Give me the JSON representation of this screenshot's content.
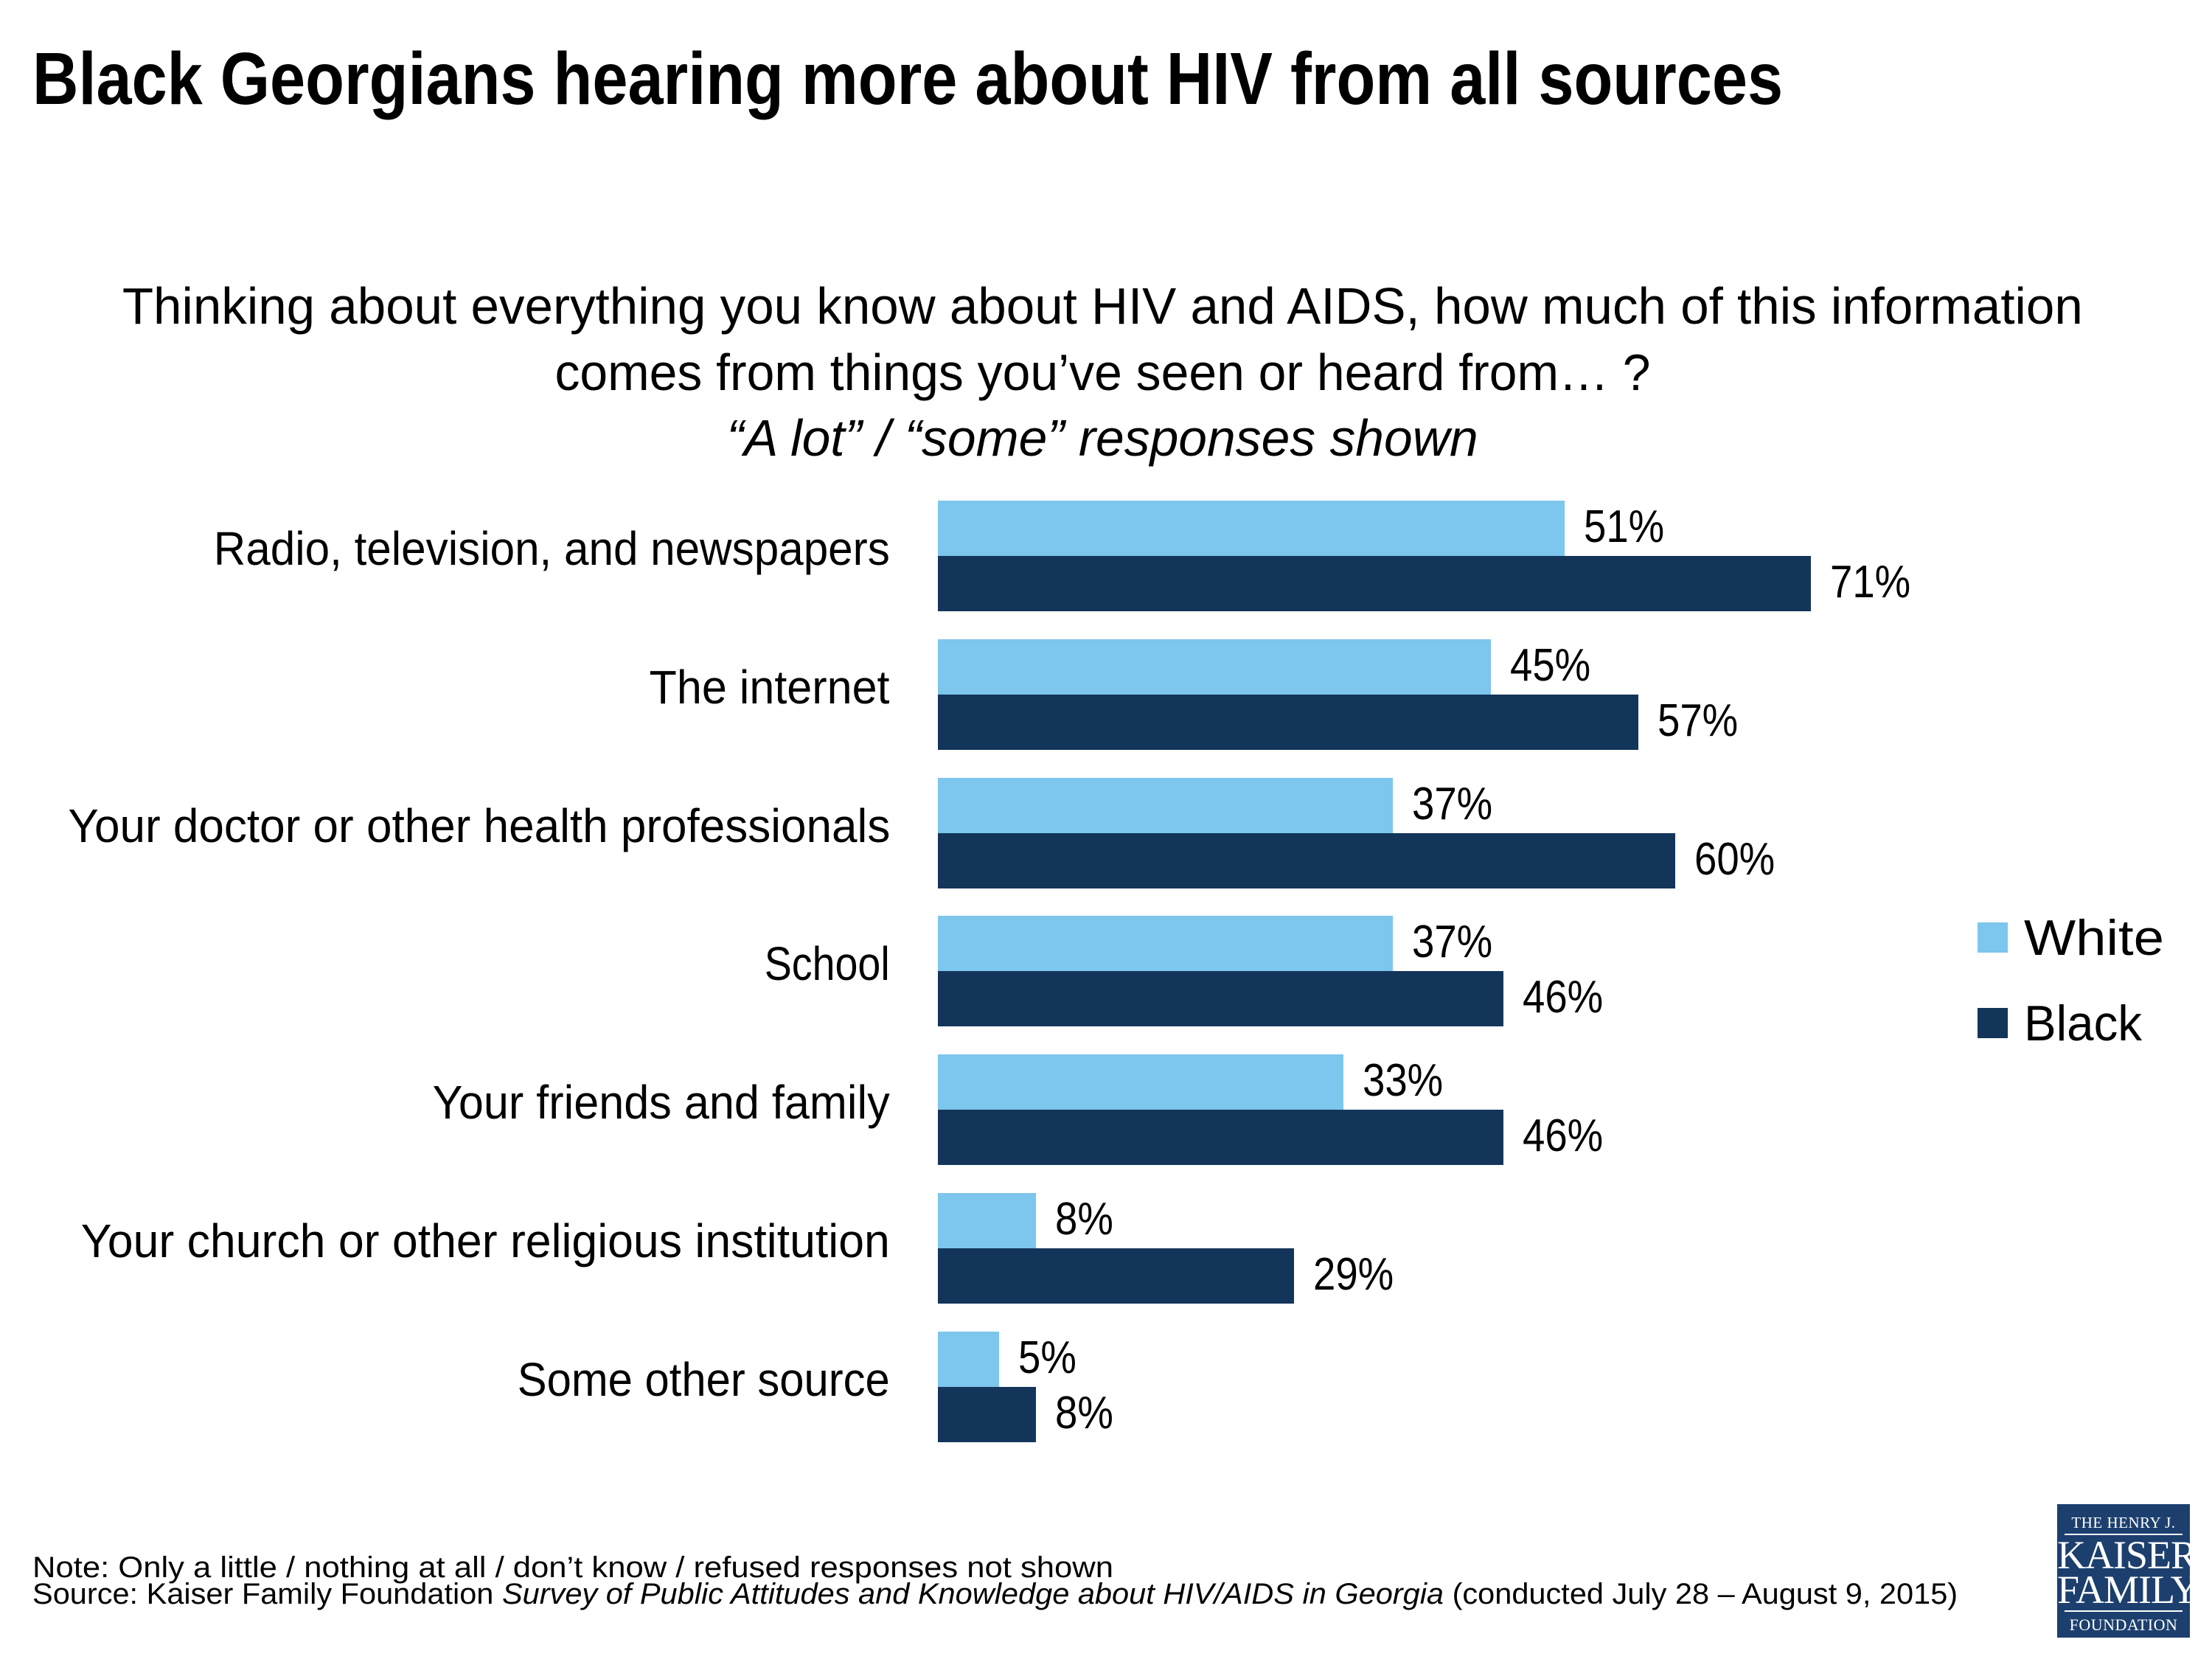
{
  "colors": {
    "white_series": "#7DC6ED",
    "black_series": "#14355A",
    "logo_bg": "#1C3F6E"
  },
  "title": "Black Georgians hearing more about HIV from all sources",
  "subtitle": {
    "line1": "Thinking about everything you know about HIV and AIDS, how much of this information",
    "line2": "comes from things you’ve seen or heard from… ?",
    "line3": "“A lot” / “some” responses shown"
  },
  "legend": {
    "items": [
      {
        "label": "White",
        "color": "#7DC6ED"
      },
      {
        "label": "Black",
        "color": "#14355A"
      }
    ]
  },
  "footer": {
    "note": "Note: Only a little / nothing at all / don’t know / refused responses not shown",
    "source_prefix": "Source: Kaiser Family Foundation ",
    "source_title": "Survey of Public Attitudes and Knowledge about HIV/AIDS in Georgia",
    "source_suffix": " (conducted July 28 – August 9, 2015)"
  },
  "logo": {
    "line1": "THE HENRY J.",
    "line2": "KAISER",
    "line3": "FAMILY",
    "line4": "FOUNDATION"
  },
  "chart_data": {
    "type": "bar",
    "orientation": "horizontal",
    "title": "Black Georgians hearing more about HIV from all sources",
    "xlabel": "",
    "ylabel": "",
    "xlim": [
      0,
      100
    ],
    "grid": false,
    "legend_position": "right",
    "value_format": "percent",
    "categories": [
      "Radio, television, and newspapers",
      "The internet",
      "Your doctor or other health professionals",
      "School",
      "Your friends and family",
      "Your church or other religious institution",
      "Some other source"
    ],
    "series": [
      {
        "name": "White",
        "color": "#7DC6ED",
        "values": [
          51,
          45,
          37,
          37,
          33,
          8,
          5
        ],
        "labels": [
          "51%",
          "45%",
          "37%",
          "37%",
          "33%",
          "8%",
          "5%"
        ]
      },
      {
        "name": "Black",
        "color": "#14355A",
        "values": [
          71,
          57,
          60,
          46,
          46,
          29,
          8
        ],
        "labels": [
          "71%",
          "57%",
          "60%",
          "46%",
          "46%",
          "29%",
          "8%"
        ]
      }
    ]
  }
}
